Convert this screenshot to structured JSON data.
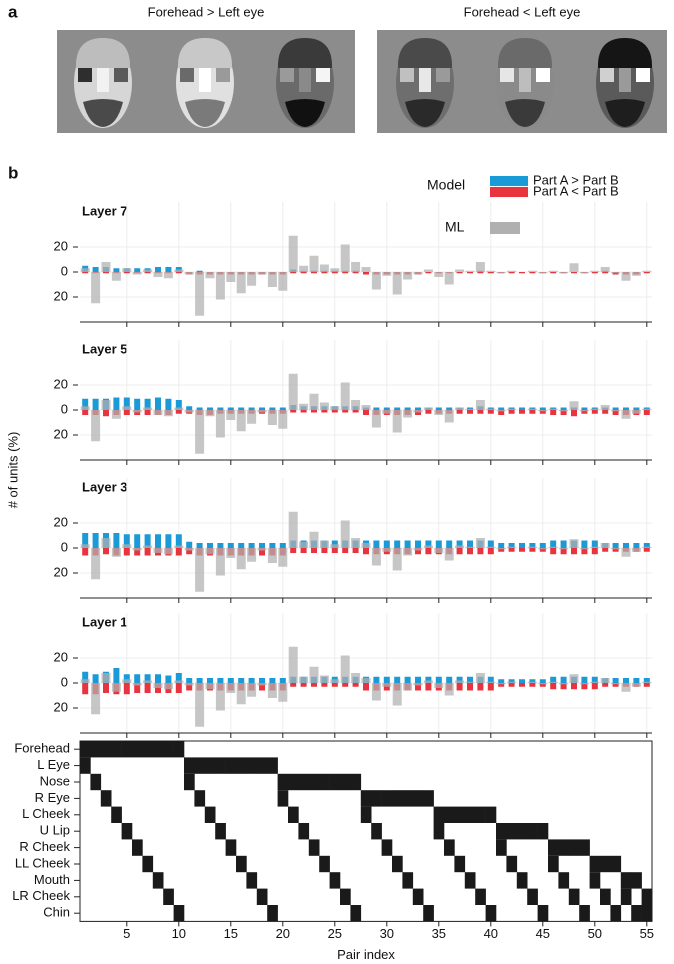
{
  "panel_labels": [
    "a",
    "b"
  ],
  "image_titles": [
    "Forehead > Left eye",
    "Forehead < Left eye"
  ],
  "ylabel": "# of units (%)",
  "legend_title": "Model",
  "chart_data": [
    {
      "type": "bar",
      "title": "Layer 7",
      "x": [
        1,
        2,
        3,
        4,
        5,
        6,
        7,
        8,
        9,
        10,
        11,
        12,
        13,
        14,
        15,
        16,
        17,
        18,
        19,
        20,
        21,
        22,
        23,
        24,
        25,
        26,
        27,
        28,
        29,
        30,
        31,
        32,
        33,
        34,
        35,
        36,
        37,
        38,
        39,
        40,
        41,
        42,
        43,
        44,
        45,
        46,
        47,
        48,
        49,
        50,
        51,
        52,
        53,
        54,
        55
      ],
      "xlim": [
        0.5,
        55.5
      ],
      "xticks": [
        5,
        10,
        15,
        20,
        25,
        30,
        35,
        40,
        45,
        50,
        55
      ],
      "ylim": [
        -40,
        40
      ],
      "yticks": [
        20,
        0,
        {
          "value": -20,
          "label": "20"
        }
      ],
      "grid": true,
      "series": [
        {
          "name": "Part A > Part B",
          "color": "#1a9ad6",
          "values": [
            5,
            4,
            4,
            3,
            3,
            3,
            3,
            4,
            4,
            4,
            0,
            1,
            0,
            0,
            0,
            0,
            0,
            0,
            0,
            0,
            2,
            1,
            1,
            1,
            1,
            1,
            1,
            0,
            0,
            0,
            0,
            0,
            0,
            0,
            0,
            0,
            0,
            0,
            1,
            0,
            0,
            0,
            0,
            0,
            0,
            0,
            0,
            0,
            0,
            0,
            1,
            0,
            0,
            0,
            0
          ]
        },
        {
          "name": "Part A < Part B",
          "color": "#e8343f",
          "values": [
            -1,
            -1,
            -1,
            -1,
            -1,
            -1,
            -1,
            -1,
            -1,
            -1,
            -2,
            -2,
            -2,
            -2,
            -2,
            -2,
            -2,
            -2,
            -2,
            -2,
            -1,
            -1,
            -1,
            -1,
            -1,
            -1,
            -1,
            -2,
            -2,
            -2,
            -2,
            -2,
            -2,
            -1,
            -1,
            -1,
            -1,
            -1,
            -1,
            -1,
            -1,
            -1,
            -1,
            -1,
            -1,
            -1,
            -1,
            -1,
            -1,
            -1,
            -1,
            -2,
            -2,
            -2,
            -1
          ]
        },
        {
          "name": "ML",
          "color": "#b0b0b0",
          "values": [
            3,
            -25,
            8,
            -7,
            3,
            -2,
            2,
            -4,
            -5,
            2,
            -2,
            -35,
            -5,
            -22,
            -8,
            -17,
            -11,
            -2,
            -12,
            -15,
            29,
            5,
            13,
            6,
            3,
            22,
            8,
            4,
            -14,
            -3,
            -18,
            -6,
            -2,
            2,
            -4,
            -10,
            2,
            1,
            8,
            1,
            -1,
            1,
            0,
            1,
            -1,
            1,
            -1,
            7,
            -1,
            1,
            4,
            -1,
            -7,
            -3,
            1
          ]
        }
      ]
    },
    {
      "type": "bar",
      "title": "Layer 5",
      "x": [
        1,
        2,
        3,
        4,
        5,
        6,
        7,
        8,
        9,
        10,
        11,
        12,
        13,
        14,
        15,
        16,
        17,
        18,
        19,
        20,
        21,
        22,
        23,
        24,
        25,
        26,
        27,
        28,
        29,
        30,
        31,
        32,
        33,
        34,
        35,
        36,
        37,
        38,
        39,
        40,
        41,
        42,
        43,
        44,
        45,
        46,
        47,
        48,
        49,
        50,
        51,
        52,
        53,
        54,
        55
      ],
      "xlim": [
        0.5,
        55.5
      ],
      "xticks": [
        5,
        10,
        15,
        20,
        25,
        30,
        35,
        40,
        45,
        50,
        55
      ],
      "ylim": [
        -40,
        40
      ],
      "yticks": [
        20,
        0,
        {
          "value": -20,
          "label": "20"
        }
      ],
      "grid": true,
      "series": [
        {
          "color": "#1a9ad6",
          "values": [
            9,
            9,
            9,
            10,
            10,
            9,
            9,
            10,
            9,
            8,
            3,
            2,
            2,
            2,
            2,
            2,
            2,
            2,
            2,
            2,
            4,
            3,
            3,
            3,
            3,
            3,
            3,
            2,
            2,
            2,
            2,
            2,
            2,
            2,
            2,
            2,
            2,
            2,
            3,
            2,
            2,
            2,
            2,
            2,
            2,
            2,
            2,
            2,
            2,
            2,
            2,
            2,
            2,
            2,
            2
          ]
        },
        {
          "color": "#e8343f",
          "values": [
            -4,
            -4,
            -5,
            -4,
            -4,
            -4,
            -4,
            -4,
            -4,
            -3,
            -3,
            -4,
            -4,
            -3,
            -3,
            -3,
            -3,
            -3,
            -3,
            -3,
            -2,
            -2,
            -2,
            -2,
            -2,
            -2,
            -2,
            -4,
            -4,
            -4,
            -4,
            -4,
            -4,
            -3,
            -3,
            -3,
            -3,
            -3,
            -3,
            -3,
            -4,
            -3,
            -3,
            -3,
            -3,
            -4,
            -4,
            -5,
            -3,
            -3,
            -3,
            -4,
            -4,
            -4,
            -4
          ]
        },
        {
          "color": "#b0b0b0",
          "values": [
            3,
            -25,
            8,
            -7,
            3,
            -2,
            2,
            -4,
            -5,
            2,
            -2,
            -35,
            -5,
            -22,
            -8,
            -17,
            -11,
            -2,
            -12,
            -15,
            29,
            5,
            13,
            6,
            3,
            22,
            8,
            4,
            -14,
            -3,
            -18,
            -6,
            -2,
            2,
            -4,
            -10,
            2,
            1,
            8,
            1,
            -1,
            1,
            0,
            1,
            -1,
            1,
            -1,
            7,
            -1,
            1,
            4,
            -1,
            -7,
            -3,
            1
          ]
        }
      ]
    },
    {
      "type": "bar",
      "title": "Layer 3",
      "x": [
        1,
        2,
        3,
        4,
        5,
        6,
        7,
        8,
        9,
        10,
        11,
        12,
        13,
        14,
        15,
        16,
        17,
        18,
        19,
        20,
        21,
        22,
        23,
        24,
        25,
        26,
        27,
        28,
        29,
        30,
        31,
        32,
        33,
        34,
        35,
        36,
        37,
        38,
        39,
        40,
        41,
        42,
        43,
        44,
        45,
        46,
        47,
        48,
        49,
        50,
        51,
        52,
        53,
        54,
        55
      ],
      "xlim": [
        0.5,
        55.5
      ],
      "xticks": [
        5,
        10,
        15,
        20,
        25,
        30,
        35,
        40,
        45,
        50,
        55
      ],
      "ylim": [
        -40,
        40
      ],
      "yticks": [
        20,
        0,
        {
          "value": -20,
          "label": "20"
        }
      ],
      "grid": true,
      "series": [
        {
          "color": "#1a9ad6",
          "values": [
            12,
            12,
            12,
            12,
            11,
            11,
            11,
            11,
            11,
            11,
            5,
            4,
            4,
            4,
            4,
            4,
            4,
            4,
            4,
            4,
            6,
            6,
            6,
            6,
            6,
            6,
            6,
            6,
            6,
            6,
            6,
            6,
            6,
            6,
            6,
            6,
            6,
            6,
            6,
            6,
            4,
            4,
            4,
            4,
            4,
            6,
            6,
            6,
            6,
            6,
            4,
            4,
            4,
            4,
            4
          ]
        },
        {
          "color": "#e8343f",
          "values": [
            -6,
            -6,
            -5,
            -6,
            -6,
            -6,
            -6,
            -6,
            -6,
            -6,
            -5,
            -6,
            -6,
            -6,
            -6,
            -6,
            -6,
            -6,
            -6,
            -6,
            -4,
            -4,
            -4,
            -4,
            -4,
            -4,
            -4,
            -5,
            -5,
            -5,
            -5,
            -5,
            -5,
            -5,
            -5,
            -5,
            -5,
            -5,
            -5,
            -5,
            -3,
            -3,
            -3,
            -3,
            -3,
            -5,
            -5,
            -5,
            -5,
            -5,
            -3,
            -3,
            -3,
            -3,
            -3
          ]
        },
        {
          "color": "#b0b0b0",
          "values": [
            3,
            -25,
            8,
            -7,
            3,
            -2,
            2,
            -4,
            -5,
            2,
            -2,
            -35,
            -5,
            -22,
            -8,
            -17,
            -11,
            -2,
            -12,
            -15,
            29,
            5,
            13,
            6,
            3,
            22,
            8,
            4,
            -14,
            -3,
            -18,
            -6,
            -2,
            2,
            -4,
            -10,
            2,
            1,
            8,
            1,
            -1,
            1,
            0,
            1,
            -1,
            1,
            -1,
            7,
            -1,
            1,
            4,
            -1,
            -7,
            -3,
            1
          ]
        }
      ]
    },
    {
      "type": "bar",
      "title": "Layer 1",
      "x": [
        1,
        2,
        3,
        4,
        5,
        6,
        7,
        8,
        9,
        10,
        11,
        12,
        13,
        14,
        15,
        16,
        17,
        18,
        19,
        20,
        21,
        22,
        23,
        24,
        25,
        26,
        27,
        28,
        29,
        30,
        31,
        32,
        33,
        34,
        35,
        36,
        37,
        38,
        39,
        40,
        41,
        42,
        43,
        44,
        45,
        46,
        47,
        48,
        49,
        50,
        51,
        52,
        53,
        54,
        55
      ],
      "xlim": [
        0.5,
        55.5
      ],
      "xticks": [
        5,
        10,
        15,
        20,
        25,
        30,
        35,
        40,
        45,
        50,
        55
      ],
      "ylim": [
        -40,
        40
      ],
      "yticks": [
        20,
        0,
        {
          "value": -20,
          "label": "20"
        }
      ],
      "grid": true,
      "series": [
        {
          "color": "#1a9ad6",
          "values": [
            9,
            7,
            9,
            12,
            7,
            7,
            7,
            7,
            6,
            8,
            4,
            4,
            4,
            4,
            4,
            4,
            4,
            4,
            4,
            4,
            5,
            5,
            5,
            5,
            5,
            5,
            5,
            5,
            5,
            5,
            5,
            5,
            5,
            5,
            5,
            5,
            5,
            5,
            5,
            5,
            3,
            3,
            3,
            3,
            3,
            5,
            5,
            5,
            5,
            5,
            4,
            4,
            4,
            4,
            4
          ]
        },
        {
          "color": "#e8343f",
          "values": [
            -9,
            -9,
            -8,
            -9,
            -9,
            -8,
            -8,
            -8,
            -8,
            -8,
            -6,
            -6,
            -6,
            -6,
            -6,
            -6,
            -6,
            -6,
            -6,
            -6,
            -3,
            -3,
            -3,
            -3,
            -3,
            -3,
            -3,
            -6,
            -6,
            -6,
            -6,
            -6,
            -6,
            -6,
            -6,
            -6,
            -6,
            -6,
            -6,
            -6,
            -3,
            -3,
            -3,
            -3,
            -3,
            -5,
            -5,
            -5,
            -5,
            -5,
            -3,
            -3,
            -3,
            -3,
            -3
          ]
        },
        {
          "color": "#b0b0b0",
          "values": [
            3,
            -25,
            8,
            -7,
            3,
            -2,
            2,
            -4,
            -5,
            2,
            -2,
            -35,
            -5,
            -22,
            -8,
            -17,
            -11,
            -2,
            -12,
            -15,
            29,
            5,
            13,
            6,
            3,
            22,
            8,
            4,
            -14,
            -3,
            -18,
            -6,
            -2,
            2,
            -4,
            -10,
            2,
            1,
            8,
            1,
            -1,
            1,
            0,
            1,
            -1,
            1,
            -1,
            7,
            -1,
            1,
            4,
            -1,
            -7,
            -3,
            1
          ]
        }
      ]
    },
    {
      "type": "matrix",
      "xlabel": "Pair index",
      "rows": [
        "Forehead",
        "L Eye",
        "Nose",
        "R Eye",
        "L Cheek",
        "U Lip",
        "R Cheek",
        "LL Cheek",
        "Mouth",
        "LR Cheek",
        "Chin"
      ],
      "xlim": [
        0.5,
        55.5
      ],
      "xticks": [
        5,
        10,
        15,
        20,
        25,
        30,
        35,
        40,
        45,
        50,
        55
      ],
      "color": "#1a1a1a",
      "pairs": [
        [
          0,
          1
        ],
        [
          0,
          2
        ],
        [
          0,
          3
        ],
        [
          0,
          4
        ],
        [
          0,
          5
        ],
        [
          0,
          6
        ],
        [
          0,
          7
        ],
        [
          0,
          8
        ],
        [
          0,
          9
        ],
        [
          0,
          10
        ],
        [
          1,
          2
        ],
        [
          1,
          3
        ],
        [
          1,
          4
        ],
        [
          1,
          5
        ],
        [
          1,
          6
        ],
        [
          1,
          7
        ],
        [
          1,
          8
        ],
        [
          1,
          9
        ],
        [
          1,
          10
        ],
        [
          2,
          3
        ],
        [
          2,
          4
        ],
        [
          2,
          5
        ],
        [
          2,
          6
        ],
        [
          2,
          7
        ],
        [
          2,
          8
        ],
        [
          2,
          9
        ],
        [
          2,
          10
        ],
        [
          3,
          4
        ],
        [
          3,
          5
        ],
        [
          3,
          6
        ],
        [
          3,
          7
        ],
        [
          3,
          8
        ],
        [
          3,
          9
        ],
        [
          3,
          10
        ],
        [
          4,
          5
        ],
        [
          4,
          6
        ],
        [
          4,
          7
        ],
        [
          4,
          8
        ],
        [
          4,
          9
        ],
        [
          4,
          10
        ],
        [
          5,
          6
        ],
        [
          5,
          7
        ],
        [
          5,
          8
        ],
        [
          5,
          9
        ],
        [
          5,
          10
        ],
        [
          6,
          7
        ],
        [
          6,
          8
        ],
        [
          6,
          9
        ],
        [
          6,
          10
        ],
        [
          7,
          8
        ],
        [
          7,
          9
        ],
        [
          7,
          10
        ],
        [
          8,
          9
        ],
        [
          8,
          10
        ],
        [
          9,
          10
        ]
      ]
    }
  ]
}
